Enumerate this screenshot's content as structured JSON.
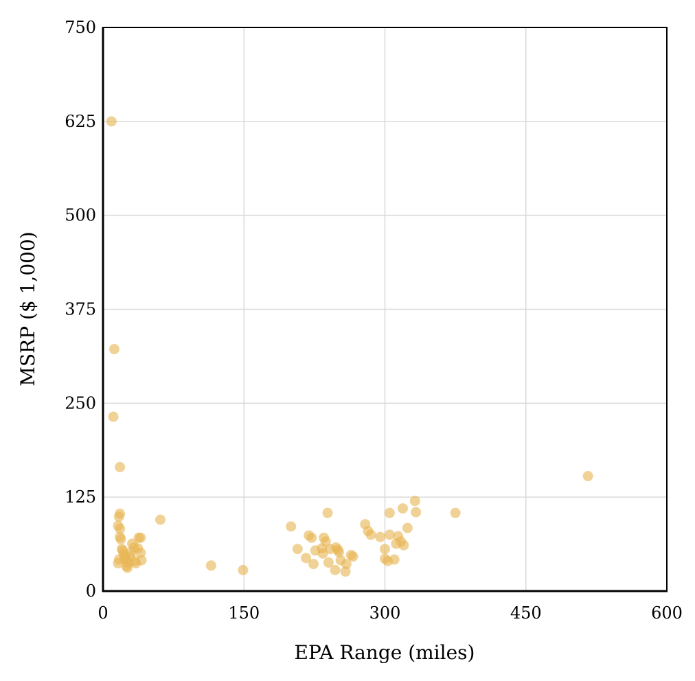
{
  "chart_data": {
    "type": "scatter",
    "xlabel": "EPA Range (miles)",
    "ylabel": "MSRP ($ 1,000)",
    "xlim": [
      0,
      600
    ],
    "ylim": [
      0,
      750
    ],
    "xticks": [
      "0",
      "150",
      "300",
      "450",
      "600"
    ],
    "yticks": [
      "0",
      "125",
      "250",
      "375",
      "500",
      "625",
      "750"
    ],
    "grid": true,
    "marker_color": "#e8b450",
    "points": [
      {
        "x": 9,
        "y": 625
      },
      {
        "x": 12,
        "y": 322
      },
      {
        "x": 11,
        "y": 232
      },
      {
        "x": 18,
        "y": 165
      },
      {
        "x": 18,
        "y": 103
      },
      {
        "x": 17,
        "y": 99
      },
      {
        "x": 16,
        "y": 87
      },
      {
        "x": 18,
        "y": 83
      },
      {
        "x": 18,
        "y": 72
      },
      {
        "x": 19,
        "y": 69
      },
      {
        "x": 20,
        "y": 56
      },
      {
        "x": 21,
        "y": 54
      },
      {
        "x": 22,
        "y": 49
      },
      {
        "x": 23,
        "y": 45
      },
      {
        "x": 24,
        "y": 42
      },
      {
        "x": 17,
        "y": 42
      },
      {
        "x": 16,
        "y": 37
      },
      {
        "x": 25,
        "y": 33
      },
      {
        "x": 26,
        "y": 31
      },
      {
        "x": 27,
        "y": 38
      },
      {
        "x": 29,
        "y": 46
      },
      {
        "x": 30,
        "y": 52
      },
      {
        "x": 31,
        "y": 63
      },
      {
        "x": 33,
        "y": 58
      },
      {
        "x": 34,
        "y": 40
      },
      {
        "x": 35,
        "y": 37
      },
      {
        "x": 37,
        "y": 57
      },
      {
        "x": 38,
        "y": 71
      },
      {
        "x": 40,
        "y": 71
      },
      {
        "x": 40,
        "y": 51
      },
      {
        "x": 41,
        "y": 41
      },
      {
        "x": 61,
        "y": 95
      },
      {
        "x": 115,
        "y": 34
      },
      {
        "x": 149,
        "y": 28
      },
      {
        "x": 200,
        "y": 86
      },
      {
        "x": 207,
        "y": 56
      },
      {
        "x": 216,
        "y": 44
      },
      {
        "x": 219,
        "y": 74
      },
      {
        "x": 222,
        "y": 71
      },
      {
        "x": 224,
        "y": 36
      },
      {
        "x": 226,
        "y": 54
      },
      {
        "x": 233,
        "y": 57
      },
      {
        "x": 234,
        "y": 50
      },
      {
        "x": 235,
        "y": 71
      },
      {
        "x": 237,
        "y": 66
      },
      {
        "x": 239,
        "y": 104
      },
      {
        "x": 240,
        "y": 38
      },
      {
        "x": 242,
        "y": 56
      },
      {
        "x": 247,
        "y": 28
      },
      {
        "x": 248,
        "y": 58
      },
      {
        "x": 250,
        "y": 55
      },
      {
        "x": 251,
        "y": 52
      },
      {
        "x": 253,
        "y": 41
      },
      {
        "x": 258,
        "y": 26
      },
      {
        "x": 259,
        "y": 36
      },
      {
        "x": 264,
        "y": 48
      },
      {
        "x": 266,
        "y": 46
      },
      {
        "x": 279,
        "y": 89
      },
      {
        "x": 282,
        "y": 80
      },
      {
        "x": 285,
        "y": 75
      },
      {
        "x": 295,
        "y": 72
      },
      {
        "x": 300,
        "y": 56
      },
      {
        "x": 300,
        "y": 43
      },
      {
        "x": 303,
        "y": 40
      },
      {
        "x": 305,
        "y": 104
      },
      {
        "x": 305,
        "y": 75
      },
      {
        "x": 310,
        "y": 42
      },
      {
        "x": 312,
        "y": 63
      },
      {
        "x": 314,
        "y": 73
      },
      {
        "x": 317,
        "y": 66
      },
      {
        "x": 319,
        "y": 110
      },
      {
        "x": 320,
        "y": 61
      },
      {
        "x": 324,
        "y": 84
      },
      {
        "x": 332,
        "y": 120
      },
      {
        "x": 333,
        "y": 105
      },
      {
        "x": 375,
        "y": 104
      },
      {
        "x": 516,
        "y": 153
      }
    ]
  }
}
